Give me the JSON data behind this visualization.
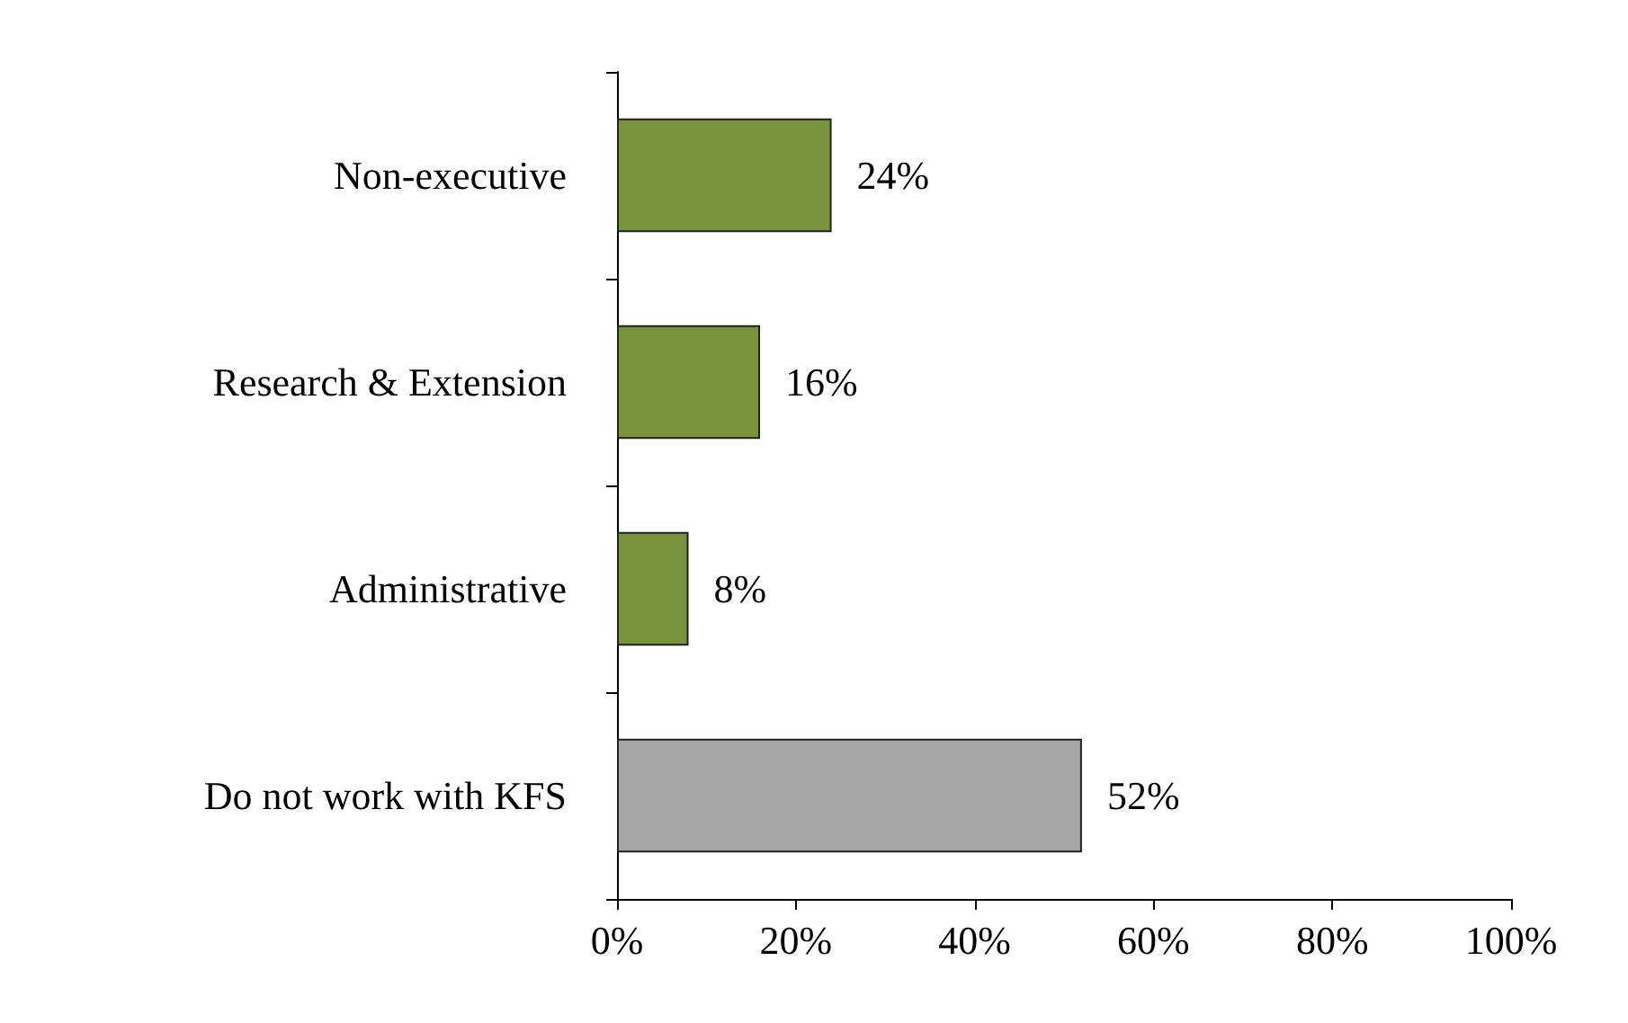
{
  "chart_data": {
    "type": "bar",
    "orientation": "horizontal",
    "categories": [
      "Non-executive",
      "Research & Extension",
      "Administrative",
      "Do not work with KFS"
    ],
    "values": [
      24,
      16,
      8,
      52
    ],
    "colors": [
      "#77933c",
      "#77933c",
      "#77933c",
      "#a6a6a6"
    ],
    "value_labels": [
      "24%",
      "16%",
      "8%",
      "52%"
    ],
    "xlim": [
      0,
      100
    ],
    "xticks": [
      {
        "value": 0,
        "label": "0%"
      },
      {
        "value": 20,
        "label": "20%"
      },
      {
        "value": 40,
        "label": "40%"
      },
      {
        "value": 60,
        "label": "60%"
      },
      {
        "value": 80,
        "label": "80%"
      },
      {
        "value": 100,
        "label": "100%"
      }
    ],
    "grid": false
  }
}
